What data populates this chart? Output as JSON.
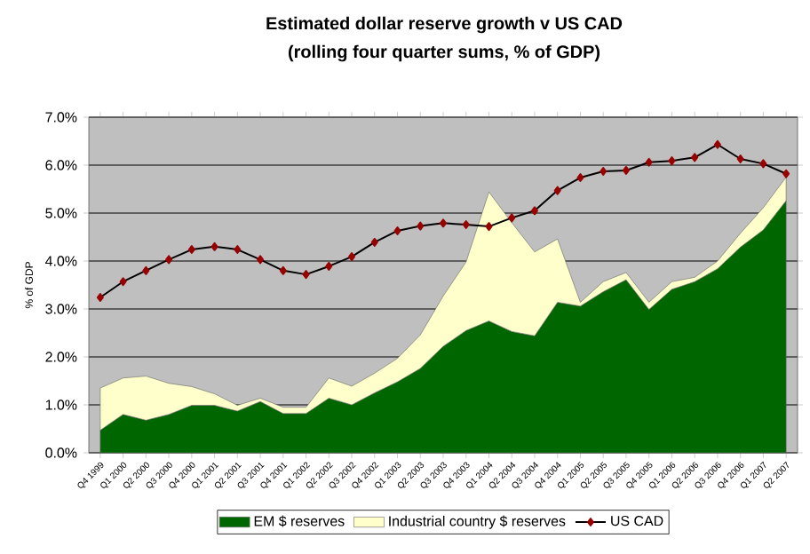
{
  "chart_data": {
    "type": "area",
    "title": "Estimated dollar reserve growth v  US CAD",
    "subtitle": "(rolling four quarter sums, % of GDP)",
    "ylabel": "% of GDP",
    "categories": [
      "Q4 1999",
      "Q1 2000",
      "Q2 2000",
      "Q3 2000",
      "Q4 2000",
      "Q1 2001",
      "Q2 2001",
      "Q3 2001",
      "Q4 2001",
      "Q1 2002",
      "Q2 2002",
      "Q3 2002",
      "Q4 2002",
      "Q1 2003",
      "Q2 2003",
      "Q3 2003",
      "Q4 2003",
      "Q1 2004",
      "Q2 2004",
      "Q3 2004",
      "Q4 2004",
      "Q1 2005",
      "Q2 2005",
      "Q3 2005",
      "Q4 2005",
      "Q1 2006",
      "Q2 2006",
      "Q3 2006",
      "Q4 2006",
      "Q1 2007",
      "Q2 2007"
    ],
    "stacked": true,
    "series": [
      {
        "name": "EM $ reserves",
        "color": "#006600",
        "values": [
          0.47,
          0.8,
          0.68,
          0.8,
          0.99,
          0.99,
          0.87,
          1.07,
          0.82,
          0.82,
          1.14,
          1.0,
          1.25,
          1.48,
          1.76,
          2.22,
          2.55,
          2.75,
          2.53,
          2.44,
          3.14,
          3.06,
          3.36,
          3.61,
          2.99,
          3.41,
          3.57,
          3.84,
          4.29,
          4.65,
          5.26
        ]
      },
      {
        "name": "Industrial country $ reserves",
        "color": "#ffffcc",
        "values": [
          0.88,
          0.76,
          0.92,
          0.65,
          0.39,
          0.24,
          0.12,
          0.07,
          0.13,
          0.13,
          0.42,
          0.39,
          0.41,
          0.49,
          0.7,
          1.05,
          1.43,
          2.69,
          2.27,
          1.75,
          1.32,
          0.08,
          0.21,
          0.15,
          0.15,
          0.16,
          0.09,
          0.16,
          0.29,
          0.46,
          0.49
        ]
      },
      {
        "name": "US CAD",
        "type": "line",
        "color": "#000000",
        "marker": "diamond",
        "values": [
          3.24,
          3.57,
          3.8,
          4.03,
          4.24,
          4.3,
          4.24,
          4.03,
          3.8,
          3.72,
          3.89,
          4.09,
          4.39,
          4.63,
          4.73,
          4.79,
          4.76,
          4.72,
          4.9,
          5.05,
          5.47,
          5.74,
          5.87,
          5.89,
          6.06,
          6.09,
          6.16,
          6.43,
          6.13,
          6.03,
          5.82
        ]
      }
    ],
    "ylim": [
      0,
      7
    ],
    "yticks": [
      {
        "value": 0,
        "label": "0.0%"
      },
      {
        "value": 1,
        "label": "1.0%"
      },
      {
        "value": 2,
        "label": "2.0%"
      },
      {
        "value": 3,
        "label": "3.0%"
      },
      {
        "value": 4,
        "label": "4.0%"
      },
      {
        "value": 5,
        "label": "5.0%"
      },
      {
        "value": 6,
        "label": "6.0%"
      },
      {
        "value": 7,
        "label": "7.0%"
      }
    ],
    "grid": "y",
    "legend": "bottom"
  }
}
